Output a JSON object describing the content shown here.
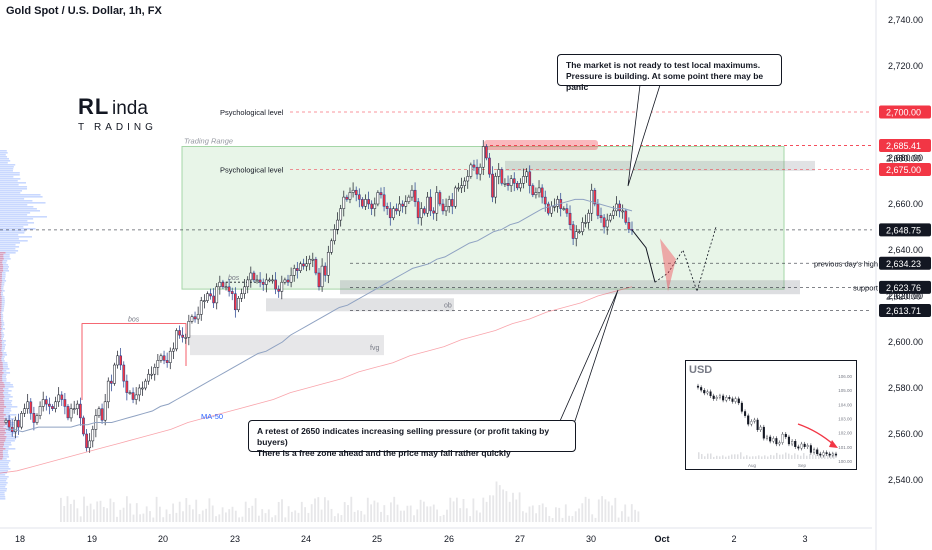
{
  "title": "Gold Spot / U.S. Dollar, 1h, FX",
  "logo": {
    "letters_top": "RLinda",
    "letters_bottom": "TRADING"
  },
  "chart_data": {
    "type": "candlestick",
    "symbol": "XAUUSD",
    "timeframe": "1h",
    "ylim": [
      2530,
      2745
    ],
    "yticks": [
      2540,
      2560,
      2580,
      2600,
      2620,
      2640,
      2660,
      2680,
      2700,
      2720,
      2740
    ],
    "xticks": [
      "18",
      "19",
      "20",
      "23",
      "24",
      "25",
      "26",
      "27",
      "30",
      "Oct",
      "2",
      "3"
    ],
    "price_labels": [
      {
        "text": "2,700.00",
        "value": 2700,
        "color": "#f23645"
      },
      {
        "text": "2,685.41",
        "value": 2685.41,
        "color": "#f23645"
      },
      {
        "text": "2,680.00",
        "value": 2680,
        "color": ""
      },
      {
        "text": "2,675.00",
        "value": 2675,
        "color": "#f23645"
      },
      {
        "text": "2,648.75",
        "value": 2648.75,
        "color": "#131722"
      },
      {
        "text": "2,634.23",
        "value": 2634.23,
        "color": "#131722"
      },
      {
        "text": "2,623.76",
        "value": 2623.76,
        "color": "#131722"
      },
      {
        "text": "2,620.00",
        "value": 2620,
        "color": ""
      },
      {
        "text": "2,613.71",
        "value": 2613.71,
        "color": "#131722"
      }
    ],
    "levels": [
      {
        "label": "Psychological level",
        "value": 2700,
        "color": "#f23645"
      },
      {
        "label": "Psychological level",
        "value": 2675,
        "color": "#f23645"
      },
      {
        "label": "previous day's high",
        "value": 2634.23,
        "color": "#131722"
      },
      {
        "label": "support",
        "value": 2623.76,
        "color": "#131722"
      },
      {
        "label": "",
        "value": 2613.71,
        "color": "#131722"
      },
      {
        "label": "",
        "value": 2648.75,
        "color": "#131722"
      }
    ],
    "zones": [
      {
        "label": "Trading Range",
        "from": 2623,
        "to": 2685
      },
      {
        "label": "bos",
        "from": 2608,
        "to": 2608
      },
      {
        "label": "bos",
        "from": 2626,
        "to": 2626
      },
      {
        "label": "fvg",
        "from": 2595,
        "to": 2603
      },
      {
        "label": "ob",
        "from": 2614,
        "to": 2619
      }
    ],
    "ma_label": "MA-50",
    "close": [
      2566,
      2563,
      2561,
      2566,
      2563,
      2569,
      2571,
      2574,
      2569,
      2565,
      2568,
      2572,
      2575,
      2573,
      2572,
      2571,
      2574,
      2577,
      2575,
      2572,
      2567,
      2571,
      2571,
      2573,
      2567,
      2560,
      2554,
      2557,
      2562,
      2568,
      2571,
      2566,
      2574,
      2583,
      2582,
      2590,
      2594,
      2590,
      2583,
      2578,
      2578,
      2575,
      2577,
      2580,
      2580,
      2583,
      2586,
      2586,
      2589,
      2592,
      2594,
      2592,
      2591,
      2596,
      2597,
      2605,
      2603,
      2602,
      2602,
      2609,
      2611,
      2610,
      2612,
      2618,
      2618,
      2621,
      2620,
      2617,
      2624,
      2626,
      2624,
      2624,
      2622,
      2621,
      2614,
      2619,
      2621,
      2624,
      2627,
      2630,
      2627,
      2627,
      2626,
      2625,
      2627,
      2627,
      2627,
      2623,
      2622,
      2626,
      2627,
      2626,
      2629,
      2632,
      2631,
      2634,
      2633,
      2634,
      2636,
      2636,
      2630,
      2624,
      2633,
      2629,
      2639,
      2644,
      2649,
      2653,
      2658,
      2663,
      2662,
      2665,
      2666,
      2664,
      2662,
      2659,
      2662,
      2660,
      2658,
      2660,
      2665,
      2664,
      2659,
      2658,
      2654,
      2658,
      2657,
      2660,
      2659,
      2661,
      2663,
      2666,
      2661,
      2654,
      2658,
      2656,
      2663,
      2657,
      2656,
      2665,
      2660,
      2657,
      2659,
      2662,
      2659,
      2667,
      2667,
      2668,
      2670,
      2672,
      2677,
      2676,
      2673,
      2676,
      2685,
      2680,
      2673,
      2663,
      2672,
      2675,
      2669,
      2669,
      2668,
      2671,
      2669,
      2667,
      2669,
      2672,
      2674,
      2668,
      2664,
      2665,
      2667,
      2663,
      2660,
      2656,
      2659,
      2659,
      2662,
      2658,
      2658,
      2656,
      2651,
      2645,
      2648,
      2648,
      2652,
      2652,
      2656,
      2666,
      2660,
      2655,
      2654,
      2650,
      2653,
      2655,
      2657,
      2660,
      2657,
      2657,
      2652,
      2649,
      2648.75
    ],
    "projection": [
      2648.75,
      2641,
      2626,
      2630,
      2640,
      2622,
      2634,
      2650
    ],
    "ma50": [
      2562,
      2562,
      2561,
      2562,
      2563,
      2563,
      2563,
      2563,
      2563,
      2564,
      2564,
      2565,
      2565,
      2565,
      2566,
      2567,
      2568,
      2569,
      2570,
      2572,
      2573,
      2575,
      2577,
      2579,
      2581,
      2583,
      2585,
      2587,
      2589,
      2591,
      2593,
      2595,
      2596,
      2598,
      2600,
      2603,
      2605,
      2607,
      2609,
      2611,
      2613,
      2615,
      2616,
      2618,
      2620,
      2622,
      2624,
      2626,
      2628,
      2630,
      2632,
      2633,
      2634,
      2636,
      2637,
      2639,
      2641,
      2643,
      2644,
      2646,
      2648,
      2649,
      2651,
      2652,
      2654,
      2656,
      2658,
      2659,
      2660,
      2661,
      2662,
      2662,
      2661,
      2660,
      2659,
      2658,
      2658,
      2657
    ],
    "long_ma": [
      2543,
      2544,
      2546,
      2548,
      2550,
      2552,
      2554,
      2556,
      2558,
      2560,
      2562,
      2565,
      2567,
      2569,
      2571,
      2573,
      2575,
      2578,
      2580,
      2582,
      2584,
      2587,
      2589,
      2591,
      2594,
      2596,
      2598,
      2601,
      2603,
      2605,
      2608,
      2610,
      2613,
      2615,
      2617,
      2620,
      2622,
      2624
    ],
    "inset": {
      "label": "USD",
      "yticks": [
        "106.00",
        "105.00",
        "104.00",
        "103.00",
        "102.00",
        "101.00",
        "100.00"
      ],
      "xticks": [
        "Aug",
        "Sep"
      ],
      "ylim": [
        100,
        106.5
      ],
      "close": [
        105.2,
        105.0,
        104.8,
        104.9,
        104.6,
        104.4,
        104.5,
        104.6,
        104.3,
        104.5,
        104.4,
        104.2,
        104.4,
        104.1,
        103.5,
        103.2,
        102.6,
        102.8,
        102.9,
        102.2,
        102.4,
        101.6,
        101.7,
        101.4,
        101.6,
        101.2,
        101.3,
        101.9,
        101.7,
        101.2,
        101.4,
        101.0,
        100.9,
        101.2,
        101.0,
        101.1,
        100.6,
        100.8,
        100.5,
        100.4,
        100.6,
        100.5,
        100.4,
        100.5,
        100.4
      ]
    }
  },
  "callouts": {
    "top": "The market is not ready to test local maximums.\nPressure is building. At some point there may be panic",
    "bottom": "A retest of 2650 indicates increasing selling pressure (or profit taking by buyers)\nThere is a free zone ahead and the price may fall rather quickly"
  }
}
